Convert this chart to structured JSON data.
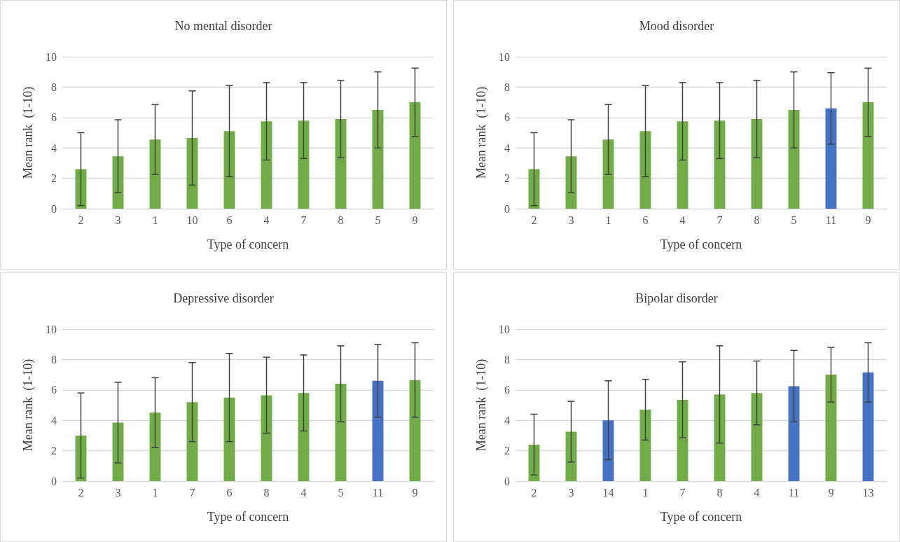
{
  "chart_data": [
    {
      "type": "bar",
      "title": "No mental disorder",
      "xlabel": "Type of concern",
      "ylabel": "Mean rank  (1-10)",
      "categories": [
        "2",
        "3",
        "1",
        "10",
        "6",
        "4",
        "7",
        "8",
        "5",
        "9"
      ],
      "values": [
        2.6,
        3.45,
        4.55,
        4.65,
        5.1,
        5.75,
        5.8,
        5.9,
        6.5,
        7.0
      ],
      "errors": [
        2.4,
        2.4,
        2.3,
        3.1,
        3.0,
        2.55,
        2.5,
        2.55,
        2.5,
        2.25
      ],
      "colors": [
        "#70ad47",
        "#70ad47",
        "#70ad47",
        "#70ad47",
        "#70ad47",
        "#70ad47",
        "#70ad47",
        "#70ad47",
        "#70ad47",
        "#70ad47"
      ],
      "ylim": [
        0,
        10
      ],
      "yticks": [
        0,
        2,
        4,
        6,
        8,
        10
      ],
      "grid": "y"
    },
    {
      "type": "bar",
      "title": "Mood disorder",
      "xlabel": "Type of concern",
      "ylabel": "Mean rank  (1-10)",
      "categories": [
        "2",
        "3",
        "1",
        "6",
        "4",
        "7",
        "8",
        "5",
        "11",
        "9"
      ],
      "values": [
        2.6,
        3.45,
        4.55,
        5.1,
        5.75,
        5.8,
        5.9,
        6.5,
        6.6,
        7.0
      ],
      "errors": [
        2.4,
        2.4,
        2.3,
        3.0,
        2.55,
        2.5,
        2.55,
        2.5,
        2.35,
        2.25
      ],
      "colors": [
        "#70ad47",
        "#70ad47",
        "#70ad47",
        "#70ad47",
        "#70ad47",
        "#70ad47",
        "#70ad47",
        "#70ad47",
        "#4472c4",
        "#70ad47"
      ],
      "ylim": [
        0,
        10
      ],
      "yticks": [
        0,
        2,
        4,
        6,
        8,
        10
      ],
      "grid": "y"
    },
    {
      "type": "bar",
      "title": "Depressive disorder",
      "xlabel": "Type of concern",
      "ylabel": "Mean rank  (1-10)",
      "categories": [
        "2",
        "3",
        "1",
        "7",
        "6",
        "8",
        "4",
        "5",
        "11",
        "9"
      ],
      "values": [
        3.0,
        3.85,
        4.5,
        5.2,
        5.5,
        5.65,
        5.8,
        6.4,
        6.6,
        6.65
      ],
      "errors": [
        2.8,
        2.65,
        2.3,
        2.6,
        2.9,
        2.5,
        2.5,
        2.5,
        2.4,
        2.45
      ],
      "colors": [
        "#70ad47",
        "#70ad47",
        "#70ad47",
        "#70ad47",
        "#70ad47",
        "#70ad47",
        "#70ad47",
        "#70ad47",
        "#4472c4",
        "#70ad47"
      ],
      "ylim": [
        0,
        10
      ],
      "yticks": [
        0,
        2,
        4,
        6,
        8,
        10
      ],
      "grid": "y"
    },
    {
      "type": "bar",
      "title": "Bipolar disorder",
      "xlabel": "Type of concern",
      "ylabel": "Mean rank  (1-10)",
      "categories": [
        "2",
        "3",
        "14",
        "1",
        "7",
        "8",
        "4",
        "11",
        "9",
        "13"
      ],
      "values": [
        2.4,
        3.25,
        4.0,
        4.7,
        5.35,
        5.7,
        5.8,
        6.25,
        7.0,
        7.15
      ],
      "errors": [
        2.0,
        2.0,
        2.6,
        2.0,
        2.5,
        3.2,
        2.1,
        2.35,
        1.8,
        1.95
      ],
      "colors": [
        "#70ad47",
        "#70ad47",
        "#4472c4",
        "#70ad47",
        "#70ad47",
        "#70ad47",
        "#70ad47",
        "#4472c4",
        "#70ad47",
        "#4472c4"
      ],
      "ylim": [
        0,
        10
      ],
      "yticks": [
        0,
        2,
        4,
        6,
        8,
        10
      ],
      "grid": "y"
    }
  ]
}
